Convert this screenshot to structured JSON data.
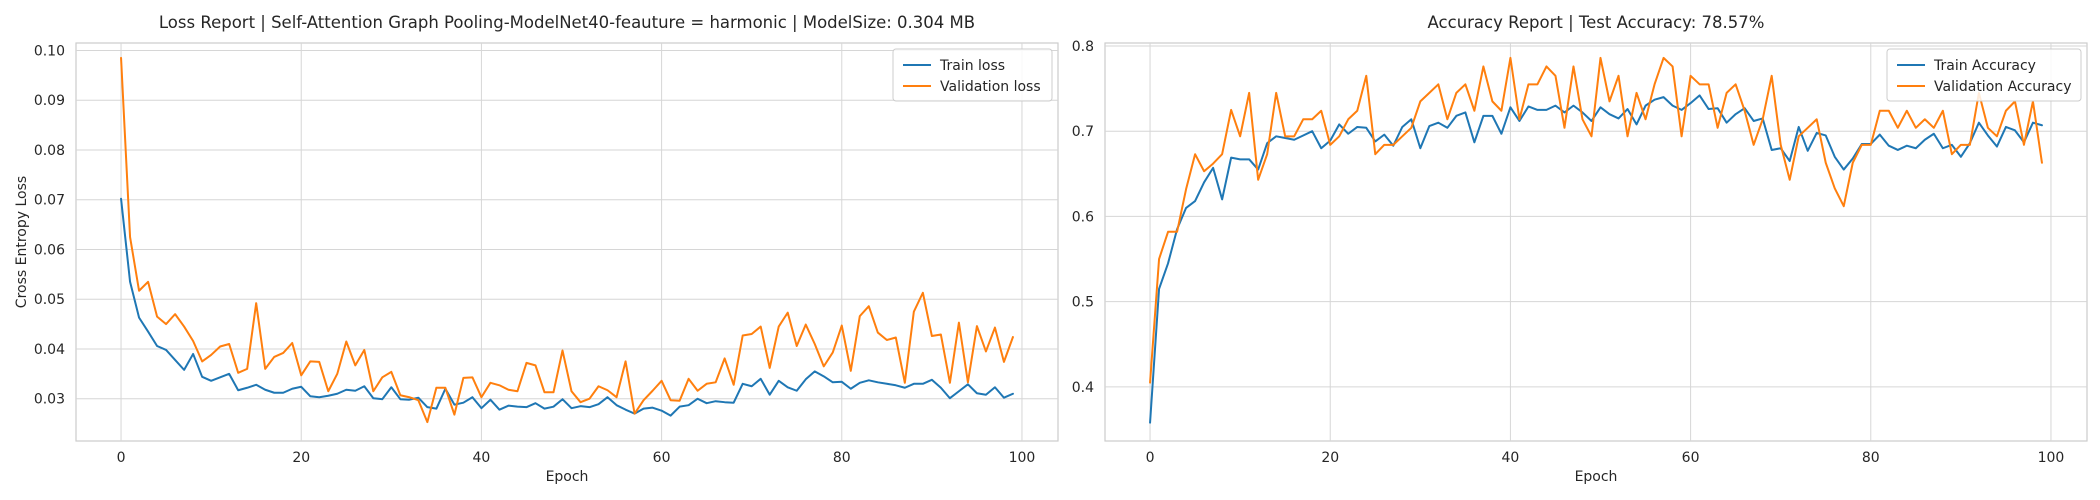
{
  "chart_data": [
    {
      "type": "line",
      "title": "Loss Report | Self-Attention Graph Pooling-ModelNet40-feauture = harmonic | ModelSize: 0.304 MB",
      "xlabel": "Epoch",
      "ylabel": "Cross Entropy Loss",
      "xlim": [
        -5,
        104
      ],
      "ylim": [
        0.0215,
        0.1015
      ],
      "xticks": [
        0,
        20,
        40,
        60,
        80,
        100
      ],
      "yticks": [
        0.03,
        0.04,
        0.05,
        0.06,
        0.07,
        0.08,
        0.09,
        0.1
      ],
      "ytick_labels": [
        "0.03",
        "0.04",
        "0.05",
        "0.06",
        "0.07",
        "0.08",
        "0.09",
        "0.10"
      ],
      "grid": true,
      "legend_position": "top-right",
      "series": [
        {
          "name": "Train loss",
          "color": "#1f77b4",
          "values": [
            0.0702,
            0.0535,
            0.0463,
            0.0435,
            0.0406,
            0.0398,
            0.0378,
            0.0358,
            0.039,
            0.0344,
            0.0336,
            0.0343,
            0.035,
            0.0317,
            0.0322,
            0.0328,
            0.0318,
            0.0312,
            0.0312,
            0.032,
            0.0324,
            0.0305,
            0.0303,
            0.0306,
            0.031,
            0.0318,
            0.0316,
            0.0325,
            0.0301,
            0.0299,
            0.0323,
            0.0299,
            0.0298,
            0.0302,
            0.0283,
            0.028,
            0.032,
            0.0288,
            0.0292,
            0.0303,
            0.0281,
            0.0298,
            0.0278,
            0.0286,
            0.0284,
            0.0283,
            0.0291,
            0.028,
            0.0284,
            0.0299,
            0.0281,
            0.0285,
            0.0283,
            0.0289,
            0.0303,
            0.0287,
            0.0278,
            0.027,
            0.028,
            0.0282,
            0.0276,
            0.0266,
            0.0284,
            0.0287,
            0.03,
            0.0291,
            0.0295,
            0.0293,
            0.0292,
            0.033,
            0.0325,
            0.034,
            0.0308,
            0.0336,
            0.0323,
            0.0316,
            0.0339,
            0.0355,
            0.0345,
            0.0333,
            0.0334,
            0.032,
            0.0332,
            0.0337,
            0.0333,
            0.033,
            0.0327,
            0.0322,
            0.033,
            0.033,
            0.0338,
            0.0322,
            0.0301,
            0.0315,
            0.0329,
            0.0311,
            0.0308,
            0.0323,
            0.0302,
            0.031
          ]
        },
        {
          "name": "Validation loss",
          "color": "#ff7f0e",
          "values": [
            0.0985,
            0.0625,
            0.0517,
            0.0535,
            0.0465,
            0.045,
            0.047,
            0.0445,
            0.0416,
            0.0375,
            0.0388,
            0.0405,
            0.041,
            0.0352,
            0.036,
            0.0492,
            0.036,
            0.0384,
            0.0392,
            0.0412,
            0.0347,
            0.0375,
            0.0374,
            0.0315,
            0.035,
            0.0415,
            0.0367,
            0.0398,
            0.0315,
            0.0343,
            0.0354,
            0.0307,
            0.0303,
            0.0297,
            0.0253,
            0.0322,
            0.0322,
            0.0268,
            0.0342,
            0.0343,
            0.0303,
            0.0332,
            0.0327,
            0.0318,
            0.0315,
            0.0372,
            0.0367,
            0.0313,
            0.0313,
            0.0397,
            0.0315,
            0.0293,
            0.03,
            0.0325,
            0.0317,
            0.0303,
            0.0375,
            0.027,
            0.0297,
            0.0316,
            0.0336,
            0.0297,
            0.0296,
            0.034,
            0.0316,
            0.033,
            0.0333,
            0.0381,
            0.0328,
            0.0427,
            0.043,
            0.0445,
            0.0362,
            0.0445,
            0.0473,
            0.0406,
            0.0449,
            0.041,
            0.0365,
            0.0393,
            0.0447,
            0.0356,
            0.0466,
            0.0486,
            0.0433,
            0.0418,
            0.0423,
            0.0332,
            0.0475,
            0.0513,
            0.0426,
            0.0429,
            0.0332,
            0.0453,
            0.0333,
            0.0446,
            0.0395,
            0.0443,
            0.0374,
            0.0424
          ]
        }
      ]
    },
    {
      "type": "line",
      "title": "Accuracy Report | Test Accuracy: 78.57%",
      "xlabel": "Epoch",
      "ylabel": "",
      "xlim": [
        -5,
        104
      ],
      "ylim": [
        0.3365,
        0.8035
      ],
      "xticks": [
        0,
        20,
        40,
        60,
        80,
        100
      ],
      "yticks": [
        0.4,
        0.5,
        0.6,
        0.7,
        0.8
      ],
      "ytick_labels": [
        "0.4",
        "0.5",
        "0.6",
        "0.7",
        "0.8"
      ],
      "grid": true,
      "legend_position": "top-right",
      "series": [
        {
          "name": "Train Accuracy",
          "color": "#1f77b4",
          "values": [
            0.358,
            0.515,
            0.545,
            0.585,
            0.61,
            0.618,
            0.64,
            0.657,
            0.62,
            0.669,
            0.667,
            0.667,
            0.655,
            0.686,
            0.694,
            0.692,
            0.69,
            0.695,
            0.7,
            0.68,
            0.689,
            0.708,
            0.697,
            0.705,
            0.704,
            0.688,
            0.696,
            0.683,
            0.705,
            0.714,
            0.68,
            0.706,
            0.71,
            0.704,
            0.718,
            0.722,
            0.687,
            0.718,
            0.718,
            0.697,
            0.728,
            0.712,
            0.729,
            0.725,
            0.725,
            0.73,
            0.722,
            0.73,
            0.722,
            0.712,
            0.728,
            0.72,
            0.715,
            0.726,
            0.708,
            0.73,
            0.737,
            0.74,
            0.73,
            0.725,
            0.733,
            0.742,
            0.726,
            0.727,
            0.71,
            0.72,
            0.727,
            0.712,
            0.715,
            0.678,
            0.68,
            0.665,
            0.705,
            0.677,
            0.698,
            0.695,
            0.67,
            0.655,
            0.668,
            0.685,
            0.685,
            0.696,
            0.683,
            0.678,
            0.683,
            0.68,
            0.69,
            0.697,
            0.68,
            0.684,
            0.67,
            0.686,
            0.71,
            0.695,
            0.682,
            0.705,
            0.701,
            0.687,
            0.71,
            0.707
          ]
        },
        {
          "name": "Validation Accuracy",
          "color": "#ff7f0e",
          "values": [
            0.405,
            0.55,
            0.582,
            0.582,
            0.632,
            0.673,
            0.653,
            0.662,
            0.673,
            0.725,
            0.694,
            0.745,
            0.643,
            0.673,
            0.745,
            0.694,
            0.694,
            0.714,
            0.714,
            0.724,
            0.684,
            0.694,
            0.714,
            0.724,
            0.765,
            0.673,
            0.684,
            0.684,
            0.694,
            0.704,
            0.735,
            0.745,
            0.755,
            0.714,
            0.745,
            0.755,
            0.724,
            0.776,
            0.735,
            0.724,
            0.786,
            0.714,
            0.755,
            0.755,
            0.776,
            0.765,
            0.704,
            0.776,
            0.714,
            0.694,
            0.786,
            0.735,
            0.765,
            0.694,
            0.745,
            0.714,
            0.755,
            0.786,
            0.776,
            0.694,
            0.765,
            0.755,
            0.755,
            0.704,
            0.745,
            0.755,
            0.724,
            0.684,
            0.714,
            0.765,
            0.684,
            0.643,
            0.694,
            0.704,
            0.714,
            0.663,
            0.633,
            0.612,
            0.663,
            0.684,
            0.684,
            0.724,
            0.724,
            0.704,
            0.724,
            0.704,
            0.714,
            0.704,
            0.724,
            0.673,
            0.684,
            0.684,
            0.745,
            0.704,
            0.694,
            0.724,
            0.735,
            0.684,
            0.735,
            0.663
          ]
        }
      ]
    }
  ]
}
